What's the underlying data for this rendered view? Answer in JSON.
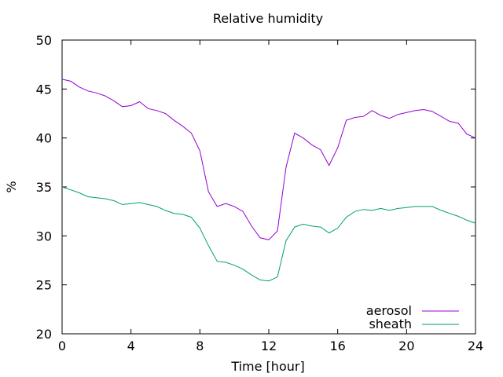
{
  "chart_data": {
    "type": "line",
    "title": "Relative humidity",
    "xlabel": "Time [hour]",
    "ylabel": "%",
    "xlim": [
      0,
      24
    ],
    "ylim": [
      20,
      50
    ],
    "xticks": [
      0,
      4,
      8,
      12,
      16,
      20,
      24
    ],
    "yticks": [
      20,
      25,
      30,
      35,
      40,
      45,
      50
    ],
    "grid": false,
    "legend_position": "bottom-right",
    "series": [
      {
        "name": "aerosol",
        "color": "#9400d3",
        "x": [
          0,
          0.5,
          1,
          1.5,
          2,
          2.5,
          3,
          3.5,
          4,
          4.5,
          5,
          5.5,
          6,
          6.5,
          7,
          7.5,
          8,
          8.5,
          9,
          9.5,
          10,
          10.5,
          11,
          11.5,
          12,
          12.5,
          13,
          13.5,
          14,
          14.5,
          15,
          15.5,
          16,
          16.5,
          17,
          17.5,
          18,
          18.5,
          19,
          19.5,
          20,
          20.5,
          21,
          21.5,
          22,
          22.5,
          23,
          23.5,
          24
        ],
        "y": [
          46.0,
          45.8,
          45.2,
          44.8,
          44.6,
          44.3,
          43.8,
          43.2,
          43.3,
          43.7,
          43.0,
          42.8,
          42.5,
          41.8,
          41.2,
          40.5,
          38.7,
          34.5,
          33.0,
          33.3,
          33.0,
          32.5,
          31.0,
          29.8,
          29.6,
          30.5,
          37.0,
          40.5,
          40.0,
          39.3,
          38.8,
          37.2,
          39.0,
          41.8,
          42.1,
          42.2,
          42.8,
          42.3,
          42.0,
          42.4,
          42.6,
          42.8,
          42.9,
          42.7,
          42.2,
          41.7,
          41.5,
          40.4,
          40.0
        ]
      },
      {
        "name": "sheath",
        "color": "#009e73",
        "x": [
          0,
          0.5,
          1,
          1.5,
          2,
          2.5,
          3,
          3.5,
          4,
          4.5,
          5,
          5.5,
          6,
          6.5,
          7,
          7.5,
          8,
          8.5,
          9,
          9.5,
          10,
          10.5,
          11,
          11.5,
          12,
          12.5,
          13,
          13.5,
          14,
          14.5,
          15,
          15.5,
          16,
          16.5,
          17,
          17.5,
          18,
          18.5,
          19,
          19.5,
          20,
          20.5,
          21,
          21.5,
          22,
          22.5,
          23,
          23.5,
          24
        ],
        "y": [
          35.0,
          34.7,
          34.4,
          34.0,
          33.9,
          33.8,
          33.6,
          33.2,
          33.3,
          33.4,
          33.2,
          33.0,
          32.6,
          32.3,
          32.2,
          31.9,
          30.8,
          29.0,
          27.4,
          27.3,
          27.0,
          26.6,
          26.0,
          25.5,
          25.4,
          25.8,
          29.5,
          30.9,
          31.2,
          31.0,
          30.9,
          30.3,
          30.8,
          31.9,
          32.5,
          32.7,
          32.6,
          32.8,
          32.6,
          32.8,
          32.9,
          33.0,
          33.0,
          33.0,
          32.6,
          32.3,
          32.0,
          31.6,
          31.3
        ]
      }
    ]
  }
}
